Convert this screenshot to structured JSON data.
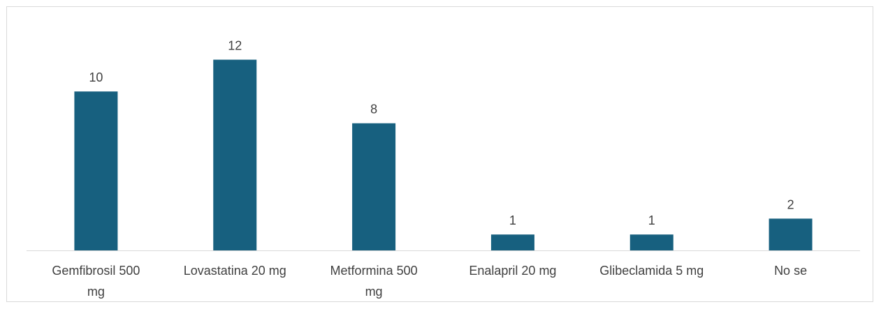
{
  "chart_data": {
    "type": "bar",
    "title": "",
    "xlabel": "",
    "ylabel": "",
    "categories": [
      "Gemfibrosil 500 mg",
      "Lovastatina 20 mg",
      "Metformina 500 mg",
      "Enalapril 20 mg",
      "Glibeclamida 5 mg",
      "No se"
    ],
    "category_label_lines": [
      [
        "Gemfibrosil 500",
        "mg"
      ],
      [
        "Lovastatina 20 mg"
      ],
      [
        "Metformina 500",
        "mg"
      ],
      [
        "Enalapril 20 mg"
      ],
      [
        "Glibeclamida 5 mg"
      ],
      [
        "No se"
      ]
    ],
    "values": [
      10,
      12,
      8,
      1,
      1,
      2
    ],
    "ylim": [
      0,
      14
    ],
    "grid": false,
    "legend": "none",
    "bar_color": "#17607f",
    "axis_color": "#d9d9d9",
    "text_color": "#404040"
  }
}
